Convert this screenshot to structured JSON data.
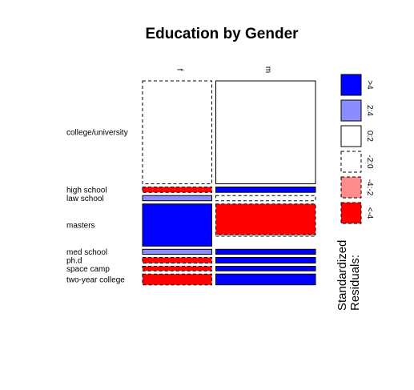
{
  "chart_data": {
    "type": "mosaic",
    "title": "Education by Gender",
    "columns": [
      {
        "label": "f",
        "width_share": 0.41
      },
      {
        "label": "m",
        "width_share": 0.59
      }
    ],
    "rows": [
      "college/university",
      "high school",
      "law school",
      "masters",
      "med school",
      "ph.d",
      "space camp",
      "two-year college"
    ],
    "row_shares": [
      0.496,
      0.026,
      0.025,
      0.203,
      0.024,
      0.027,
      0.022,
      0.052
    ],
    "cells": [
      {
        "row": "college/university",
        "col": "f",
        "share": 1,
        "residual": "-2:0"
      },
      {
        "row": "college/university",
        "col": "m",
        "share": 1,
        "residual": "0:2"
      },
      {
        "row": "high school",
        "col": "f",
        "share": 1,
        "residual": "<-4"
      },
      {
        "row": "high school",
        "col": "m",
        "share": 1,
        "residual": ">4"
      },
      {
        "row": "law school",
        "col": "f",
        "share": 1,
        "residual": "2:4"
      },
      {
        "row": "law school",
        "col": "m",
        "share": 1,
        "residual": "-2:0"
      },
      {
        "row": "masters",
        "col": "f",
        "share": 1,
        "residual": ">4"
      },
      {
        "row": "masters",
        "col": "m",
        "share": 0.73,
        "residual": "<-4"
      },
      {
        "row": "med school",
        "col": "f",
        "share": 1,
        "residual": "2:4"
      },
      {
        "row": "med school",
        "col": "m",
        "share": 1,
        "residual": ">4"
      },
      {
        "row": "ph.d",
        "col": "f",
        "share": 1,
        "residual": "<-4"
      },
      {
        "row": "ph.d",
        "col": "m",
        "share": 1,
        "residual": ">4"
      },
      {
        "row": "space camp",
        "col": "f",
        "share": 1,
        "residual": "<-4"
      },
      {
        "row": "space camp",
        "col": "m",
        "share": 1,
        "residual": ">4"
      },
      {
        "row": "two-year college",
        "col": "f",
        "share": 1,
        "residual": "<-4"
      },
      {
        "row": "two-year college",
        "col": "m",
        "share": 1,
        "residual": ">4"
      }
    ],
    "empty_segments": [
      {
        "row": "masters",
        "col": "m",
        "after_share": 0.73,
        "residual": "-2:0"
      }
    ],
    "legend": {
      "title": "Standardized Residuals:",
      "placement": "right",
      "items": [
        {
          "label": ">4",
          "fill": "#0000ff",
          "dashed": false
        },
        {
          "label": "2:4",
          "fill": "#8c8cff",
          "dashed": false
        },
        {
          "label": "0:2",
          "fill": "#ffffff",
          "dashed": false
        },
        {
          "label": "-2:0",
          "fill": "#ffffff",
          "dashed": true
        },
        {
          "label": "-4:-2",
          "fill": "#ff8c8c",
          "dashed": true
        },
        {
          "label": "<-4",
          "fill": "#ff0000",
          "dashed": true
        }
      ]
    }
  }
}
